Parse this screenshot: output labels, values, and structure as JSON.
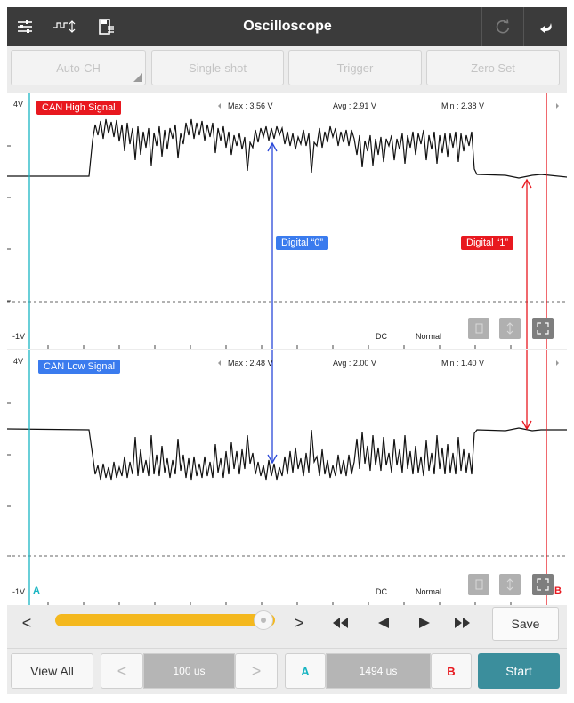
{
  "titlebar": {
    "title": "Oscilloscope",
    "left_icons": [
      "sliders-icon",
      "trigger-mode-icon",
      "save-file-icon"
    ],
    "right_icons": [
      "refresh-icon",
      "back-icon"
    ]
  },
  "mode_buttons": [
    {
      "label": "Auto-CH"
    },
    {
      "label": "Single-shot"
    },
    {
      "label": "Trigger"
    },
    {
      "label": "Zero Set"
    }
  ],
  "channels": [
    {
      "name": "CAN High Signal",
      "scale_top": "4V",
      "scale_bottom": "-1V",
      "max": "Max : 3.56 V",
      "avg": "Avg : 2.91 V",
      "min": "Min : 2.38 V",
      "coupling": "DC",
      "mode": "Normal",
      "color": "#e8181f"
    },
    {
      "name": "CAN Low Signal",
      "scale_top": "4V",
      "scale_bottom": "-1V",
      "max": "Max : 2.48 V",
      "avg": "Avg : 2.00 V",
      "min": "Min : 1.40 V",
      "coupling": "DC",
      "mode": "Normal",
      "color": "#3a7bee"
    }
  ],
  "annotations": {
    "digital_zero": "Digital “0”",
    "digital_one": "Digital “1”"
  },
  "cursors": {
    "a_label": "A",
    "b_label": "B",
    "a_color": "#19b5c2",
    "b_color": "#e8181f"
  },
  "navigation": {
    "prev_symbol": "<",
    "next_symbol": ">",
    "slider_position": 0.97,
    "save_label": "Save"
  },
  "bottom": {
    "view_all_label": "View All",
    "prev_symbol": "<",
    "timebase": "100 us",
    "next_symbol": ">",
    "cursor_a_label": "A",
    "cursor_delta": "1494 us",
    "cursor_b_label": "B",
    "start_label": "Start",
    "start_color": "#3b8e9c"
  }
}
